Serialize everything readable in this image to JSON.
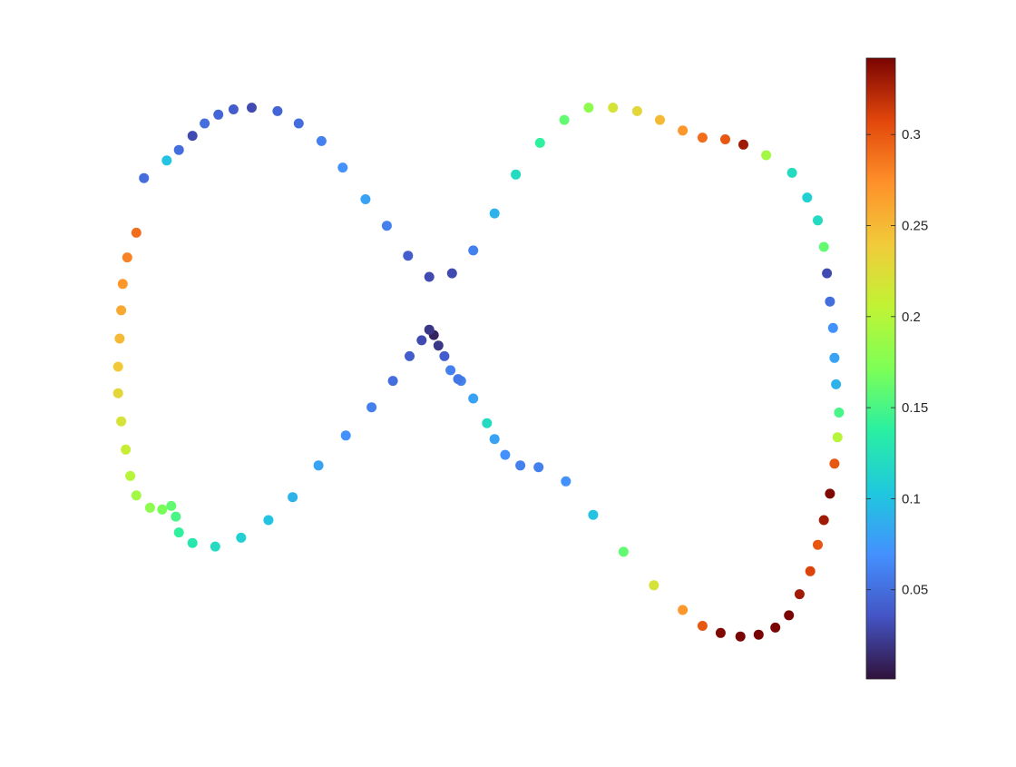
{
  "chart_data": {
    "type": "scatter",
    "title": "",
    "xlabel": "",
    "ylabel": "",
    "axes_visible": false,
    "grid": false,
    "colormap": "turbo",
    "colorbar": {
      "position": "right",
      "range": [
        0.001,
        0.342
      ],
      "ticks": [
        0.05,
        0.1,
        0.15,
        0.2,
        0.25,
        0.3
      ],
      "tick_labels": [
        "0.05",
        "0.1",
        "0.15",
        "0.2",
        "0.25",
        "0.3"
      ]
    },
    "xlim": [
      -2.9,
      2.3
    ],
    "ylim": [
      -1.75,
      1.7
    ],
    "x": [
      -2.37,
      -2.22,
      -2.14,
      -2.05,
      -1.97,
      -1.88,
      -1.78,
      -1.66,
      -1.49,
      -1.35,
      -1.2,
      -1.06,
      -0.91,
      -0.77,
      -0.63,
      -0.49,
      -0.34,
      -0.2,
      -0.06,
      0.08,
      0.24,
      0.4,
      0.56,
      0.72,
      0.88,
      1.03,
      1.18,
      1.31,
      1.46,
      1.58,
      1.73,
      1.9,
      2,
      2.07,
      2.11,
      2.13,
      2.15,
      2.17,
      2.18,
      2.19,
      2.21,
      2.2,
      2.18,
      2.15,
      2.11,
      2.07,
      2.02,
      1.95,
      1.88,
      1.79,
      1.68,
      1.56,
      1.43,
      1.31,
      1.18,
      0.99,
      0.79,
      0.59,
      0.41,
      0.23,
      0.11,
      0.01,
      -0.06,
      -0.11,
      -0.2,
      -0.28,
      -0.3,
      -0.35,
      -0.39,
      -0.43,
      -0.46,
      -0.49,
      -0.54,
      -0.62,
      -0.73,
      -0.87,
      -1.04,
      -1.22,
      -1.39,
      -1.55,
      -1.73,
      -1.9,
      -2.05,
      -2.14,
      -2.16,
      -2.19,
      -2.25,
      -2.33,
      -2.42,
      -2.46,
      -2.49,
      -2.52,
      -2.54,
      -2.54,
      -2.53,
      -2.52,
      -2.51,
      -2.48,
      -2.42
    ],
    "y": [
      1.05,
      1.15,
      1.21,
      1.29,
      1.36,
      1.41,
      1.44,
      1.45,
      1.43,
      1.36,
      1.26,
      1.11,
      0.93,
      0.78,
      0.61,
      0.49,
      0.51,
      0.64,
      0.85,
      1.07,
      1.25,
      1.38,
      1.45,
      1.45,
      1.43,
      1.38,
      1.32,
      1.28,
      1.27,
      1.24,
      1.18,
      1.08,
      0.94,
      0.81,
      0.66,
      0.51,
      0.35,
      0.2,
      0.03,
      -0.12,
      -0.28,
      -0.42,
      -0.57,
      -0.74,
      -0.89,
      -1.03,
      -1.18,
      -1.31,
      -1.43,
      -1.5,
      -1.54,
      -1.55,
      -1.53,
      -1.49,
      -1.4,
      -1.26,
      -1.07,
      -0.86,
      -0.67,
      -0.59,
      -0.58,
      -0.52,
      -0.43,
      -0.34,
      -0.2,
      -0.1,
      -0.09,
      -0.04,
      0.04,
      0.1,
      0.16,
      0.19,
      0.13,
      0.04,
      -0.1,
      -0.25,
      -0.41,
      -0.58,
      -0.76,
      -0.89,
      -0.99,
      -1.04,
      -1.02,
      -0.96,
      -0.87,
      -0.81,
      -0.83,
      -0.82,
      -0.75,
      -0.64,
      -0.49,
      -0.33,
      -0.17,
      -0.02,
      0.14,
      0.3,
      0.45,
      0.6,
      0.74
    ],
    "values": [
      0.05,
      0.1,
      0.05,
      0.03,
      0.05,
      0.045,
      0.04,
      0.03,
      0.045,
      0.05,
      0.06,
      0.07,
      0.08,
      0.06,
      0.04,
      0.03,
      0.03,
      0.06,
      0.09,
      0.12,
      0.14,
      0.16,
      0.18,
      0.22,
      0.23,
      0.25,
      0.27,
      0.29,
      0.3,
      0.33,
      0.19,
      0.12,
      0.11,
      0.12,
      0.16,
      0.03,
      0.05,
      0.07,
      0.08,
      0.09,
      0.15,
      0.2,
      0.3,
      0.34,
      0.33,
      0.3,
      0.31,
      0.33,
      0.37,
      0.4,
      0.39,
      0.38,
      0.34,
      0.3,
      0.27,
      0.22,
      0.16,
      0.1,
      0.07,
      0.06,
      0.06,
      0.07,
      0.08,
      0.12,
      0.08,
      0.06,
      0.055,
      0.06,
      0.04,
      0.02,
      0.01,
      0.02,
      0.03,
      0.04,
      0.05,
      0.06,
      0.07,
      0.08,
      0.09,
      0.1,
      0.11,
      0.12,
      0.13,
      0.14,
      0.15,
      0.16,
      0.17,
      0.18,
      0.19,
      0.2,
      0.21,
      0.22,
      0.23,
      0.24,
      0.25,
      0.26,
      0.27,
      0.28,
      0.29
    ]
  }
}
